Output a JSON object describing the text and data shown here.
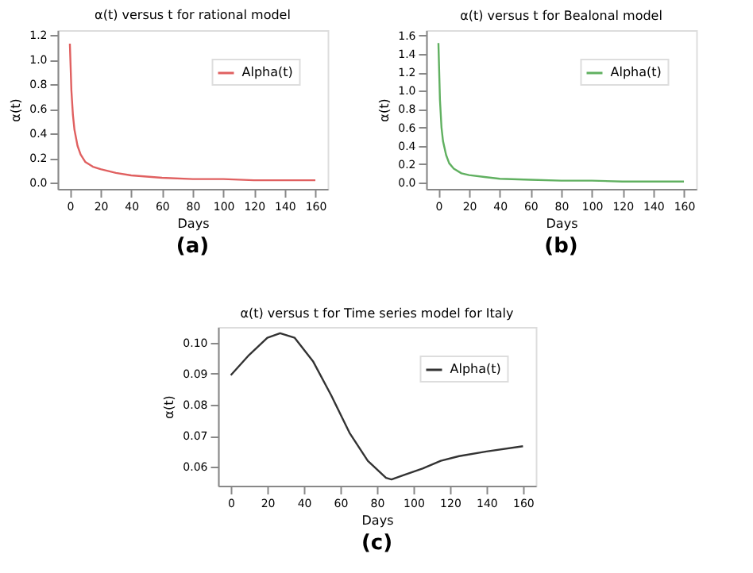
{
  "chart_data": [
    {
      "type": "line",
      "title": "α(t) versus t for rational model",
      "xlabel": "Days",
      "ylabel": "α(t)",
      "annotations": [
        "(a)"
      ],
      "legend": "top right",
      "grid": false,
      "xlim": [
        -8,
        168
      ],
      "ylim": [
        -0.05,
        1.24
      ],
      "xticks": [
        0,
        20,
        40,
        60,
        80,
        100,
        120,
        140,
        160
      ],
      "yticks": [
        {
          "value": 0,
          "label": "0.0"
        },
        0.2,
        0.4,
        0.6,
        0.8,
        {
          "value": 1,
          "label": "1.0"
        },
        1.2
      ],
      "series": [
        {
          "name": "Alpha(t)",
          "color": "#e06060",
          "x": [
            0,
            1,
            2,
            3,
            5,
            7,
            10,
            15,
            20,
            30,
            40,
            60,
            80,
            100,
            120,
            140,
            160
          ],
          "values": [
            1.13,
            0.75,
            0.55,
            0.43,
            0.3,
            0.23,
            0.17,
            0.13,
            0.11,
            0.08,
            0.06,
            0.04,
            0.03,
            0.03,
            0.02,
            0.02,
            0.02
          ]
        }
      ]
    },
    {
      "type": "line",
      "title": "α(t) versus t for Bealonal model",
      "xlabel": "Days",
      "ylabel": "α(t)",
      "annotations": [
        "(b)"
      ],
      "legend": "top right",
      "grid": false,
      "xlim": [
        -8,
        168
      ],
      "ylim": [
        -0.07,
        1.66
      ],
      "xticks": [
        0,
        20,
        40,
        60,
        80,
        100,
        120,
        140,
        160
      ],
      "yticks": [
        {
          "value": 0,
          "label": "0.0"
        },
        0.2,
        0.4,
        0.6,
        0.8,
        {
          "value": 1,
          "label": "1.0"
        },
        1.2,
        1.4,
        1.6
      ],
      "series": [
        {
          "name": "Alpha(t)",
          "color": "#60b060",
          "x": [
            0,
            1,
            2,
            3,
            5,
            7,
            10,
            15,
            20,
            30,
            40,
            60,
            80,
            100,
            120,
            140,
            160
          ],
          "values": [
            1.52,
            0.9,
            0.6,
            0.45,
            0.3,
            0.21,
            0.15,
            0.1,
            0.08,
            0.06,
            0.04,
            0.03,
            0.02,
            0.02,
            0.01,
            0.01,
            0.01
          ]
        }
      ]
    },
    {
      "type": "line",
      "title": "α(t) versus t for Time series model for Italy",
      "xlabel": "Days",
      "ylabel": "α(t)",
      "annotations": [
        "(c)"
      ],
      "legend": "top right",
      "grid": false,
      "xlim": [
        -7,
        167
      ],
      "ylim": [
        0.054,
        0.105
      ],
      "xticks": [
        0,
        20,
        40,
        60,
        80,
        100,
        120,
        140,
        160
      ],
      "yticks": [
        0.06,
        0.07,
        0.08,
        0.09,
        {
          "value": 0.1,
          "label": "0.10"
        }
      ],
      "series": [
        {
          "name": "Alpha(t)",
          "color": "#333333",
          "x": [
            0,
            10,
            20,
            27,
            35,
            45,
            55,
            65,
            75,
            85,
            88,
            95,
            105,
            115,
            125,
            140,
            160
          ],
          "values": [
            0.0895,
            0.096,
            0.1015,
            0.103,
            0.1015,
            0.094,
            0.083,
            0.071,
            0.062,
            0.0565,
            0.056,
            0.0575,
            0.0595,
            0.062,
            0.0635,
            0.065,
            0.0667
          ]
        }
      ]
    }
  ]
}
